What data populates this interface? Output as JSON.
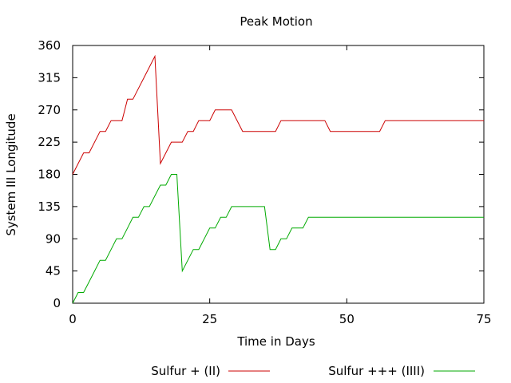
{
  "chart_data": {
    "type": "line",
    "title": "Peak Motion",
    "xlabel": "Time in Days",
    "ylabel": "System III Longitude",
    "xlim": [
      0,
      75
    ],
    "ylim": [
      0,
      360
    ],
    "xticks": [
      0,
      25,
      50,
      75
    ],
    "yticks": [
      0,
      45,
      90,
      135,
      180,
      225,
      270,
      315,
      360
    ],
    "grid": false,
    "legend_position": "bottom",
    "series": [
      {
        "name": "Sulfur + (II)",
        "color": "#cc0000",
        "x": [
          0,
          2,
          3,
          5,
          6,
          7,
          9,
          10,
          11,
          12,
          13,
          15,
          16,
          18,
          20,
          21,
          22,
          23,
          25,
          26,
          29,
          31,
          37,
          38,
          46,
          47,
          56,
          57,
          75
        ],
        "y": [
          180,
          210,
          210,
          240,
          240,
          255,
          255,
          285,
          285,
          300,
          315,
          345,
          195,
          225,
          225,
          240,
          240,
          255,
          255,
          270,
          270,
          240,
          240,
          255,
          255,
          240,
          240,
          255,
          255
        ]
      },
      {
        "name": "Sulfur +++ (IIII)",
        "color": "#00aa00",
        "x": [
          0,
          1,
          2,
          3,
          4,
          5,
          6,
          7,
          8,
          9,
          10,
          11,
          12,
          13,
          14,
          15,
          16,
          17,
          18,
          19,
          20,
          21,
          22,
          23,
          24,
          25,
          26,
          27,
          28,
          29,
          30,
          31,
          32,
          33,
          34,
          35,
          36,
          37,
          38,
          39,
          40,
          41,
          42,
          43,
          44,
          45,
          75
        ],
        "y": [
          0,
          15,
          15,
          30,
          45,
          60,
          60,
          75,
          90,
          90,
          105,
          120,
          120,
          135,
          135,
          150,
          165,
          165,
          180,
          180,
          45,
          60,
          75,
          75,
          90,
          105,
          105,
          120,
          120,
          135,
          135,
          135,
          135,
          135,
          135,
          135,
          75,
          75,
          90,
          90,
          105,
          105,
          105,
          120,
          120,
          120,
          120
        ]
      }
    ]
  }
}
